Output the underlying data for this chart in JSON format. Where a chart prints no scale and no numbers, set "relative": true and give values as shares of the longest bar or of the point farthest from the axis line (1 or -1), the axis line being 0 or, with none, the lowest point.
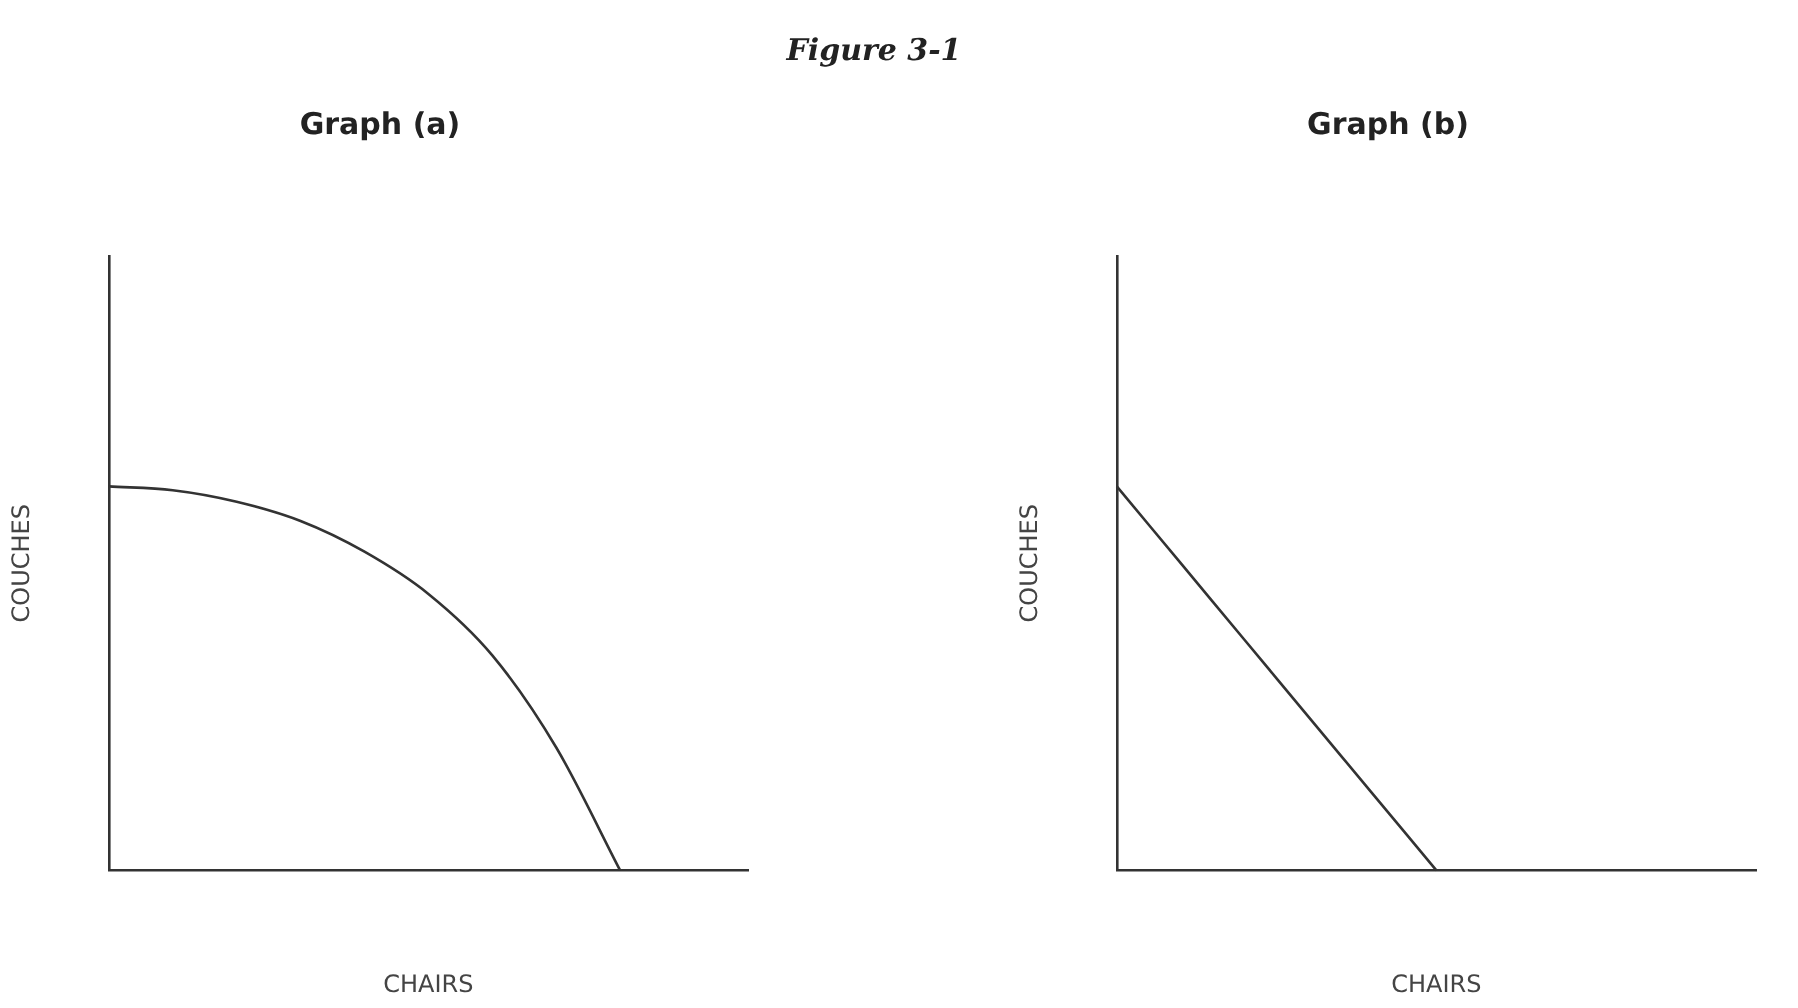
{
  "chart_data": [
    {
      "type": "line",
      "title": "Graph (a)",
      "annotations": [
        "Figure 3-1"
      ],
      "xlabel": "CHAIRS",
      "ylabel": "COUCHES",
      "relative": true,
      "grid": false,
      "legend": false,
      "marker": "none",
      "line_style": "solid",
      "categories": [
        null,
        null,
        null,
        null,
        null,
        null,
        null,
        null,
        null,
        null,
        null
      ],
      "series": [
        {
          "color": "#333333",
          "values": [
            1,
            0.99,
            0.96,
            0.91,
            0.83,
            0.72,
            0.56,
            0.32,
            0,
            null,
            null
          ]
        }
      ]
    },
    {
      "type": "line",
      "title": "Graph (b)",
      "xlabel": "CHAIRS",
      "ylabel": "COUCHES",
      "relative": true,
      "grid": false,
      "legend": false,
      "marker": "none",
      "line_style": "solid",
      "categories": [
        null,
        null,
        null,
        null,
        null,
        null,
        null,
        null,
        null,
        null,
        null
      ],
      "series": [
        {
          "color": "#333333",
          "values": [
            1,
            0.8,
            0.6,
            0.4,
            0.2,
            0,
            null,
            null,
            null,
            null,
            null
          ]
        }
      ]
    }
  ]
}
